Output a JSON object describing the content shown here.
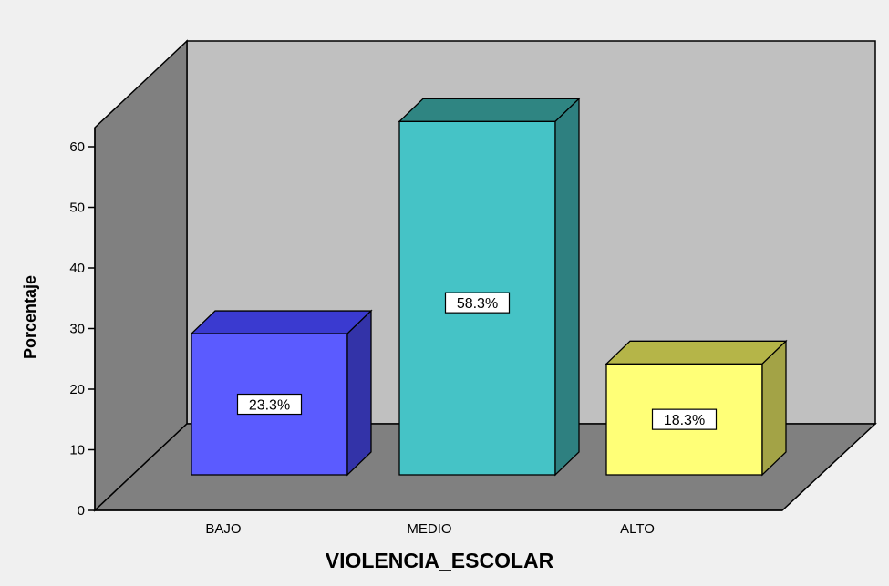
{
  "chart_data": {
    "type": "bar",
    "xlabel": "VIOLENCIA_ESCOLAR",
    "ylabel": "Porcentaje",
    "categories": [
      "BAJO",
      "MEDIO",
      "ALTO"
    ],
    "values": [
      23.3,
      58.3,
      18.3
    ],
    "data_labels": [
      "23.3%",
      "58.3%",
      "18.3%"
    ],
    "yticks": [
      "0",
      "10",
      "20",
      "30",
      "40",
      "50",
      "60"
    ],
    "ylim": [
      0,
      65
    ],
    "grid": false,
    "legend": "none",
    "colors": {
      "bar_fronts": [
        "#5b5bff",
        "#45c3c6",
        "#ffff77"
      ],
      "bar_tops": [
        "#3a3ad0",
        "#2f8582",
        "#b5b548"
      ],
      "bar_sides": [
        "#3333a8",
        "#2e8080",
        "#a3a346"
      ],
      "back_wall": "#c0c0c0",
      "left_wall": "#808080",
      "floor": "#808080",
      "background": "#f0f0f0"
    }
  }
}
